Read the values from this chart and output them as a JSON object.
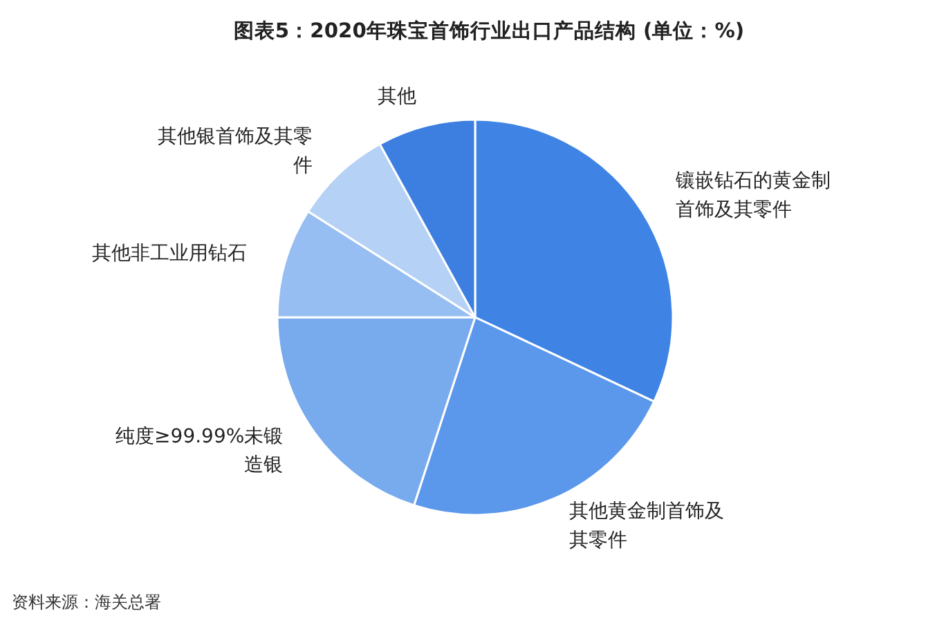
{
  "chart_data": {
    "type": "pie",
    "title": "图表5：2020年珠宝首饰行业出口产品结构 (单位：%)",
    "categories": [
      "镶嵌钻石的黄金制首饰及其零件",
      "其他黄金制首饰及其零件",
      "纯度≥99.99%未锻造银",
      "其他非工业用钻石",
      "其他银首饰及其零件",
      "其他"
    ],
    "values": [
      32,
      23,
      20,
      9,
      8,
      8
    ],
    "colors": [
      "#3f84e5",
      "#5b97ea",
      "#78aaee",
      "#97bef2",
      "#b5d1f6",
      "#3d7fe0"
    ],
    "annotations": [
      "资料来源：海关总署"
    ]
  }
}
